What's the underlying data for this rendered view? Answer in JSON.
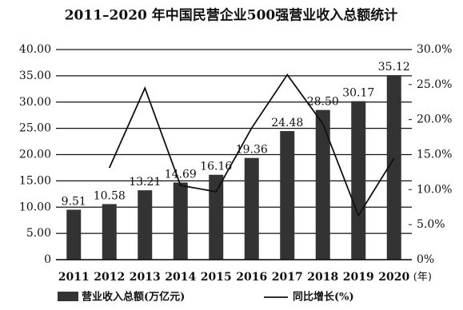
{
  "chart_data": {
    "type": "bar-line",
    "title": "2011–2020 年中国民营企业500强营业收入总额统计",
    "x_label": "(年)",
    "categories": [
      "2011",
      "2012",
      "2013",
      "2014",
      "2015",
      "2016",
      "2017",
      "2018",
      "2019",
      "2020"
    ],
    "series": [
      {
        "name": "营业收入总额(万亿元)",
        "type": "bar",
        "color": "#333333",
        "values": [
          9.51,
          10.58,
          13.21,
          14.69,
          16.16,
          19.36,
          24.48,
          28.5,
          30.17,
          35.12
        ],
        "value_labels": [
          "9.51",
          "10.58",
          "13.21",
          "14.69",
          "16.16",
          "19.36",
          "24.48",
          "28.50",
          "30.17",
          "35.12"
        ]
      },
      {
        "name": "同比增长(%)",
        "type": "line",
        "axis": "y2",
        "color": "#111111",
        "values": [
          null,
          13.1,
          24.5,
          10.6,
          9.7,
          18.8,
          26.4,
          19.4,
          6.3,
          14.5
        ]
      }
    ],
    "ylim": [
      0,
      40
    ],
    "yticks": [
      0,
      {
        "value": 5,
        "label": "5.00"
      },
      {
        "value": 10,
        "label": "10.00"
      },
      {
        "value": 15,
        "label": "15.00"
      },
      {
        "value": 20,
        "label": "20.00"
      },
      {
        "value": 25,
        "label": "25.00"
      },
      {
        "value": 30,
        "label": "30.00"
      },
      {
        "value": 35,
        "label": "35.00"
      },
      {
        "value": 40,
        "label": "40.00"
      }
    ],
    "y2lim": [
      0,
      30
    ],
    "y2ticks": [
      {
        "value": 0,
        "label": "0%"
      },
      {
        "value": 5,
        "label": "5.0%"
      },
      {
        "value": 10,
        "label": "10.0%"
      },
      {
        "value": 15,
        "label": "15.0%"
      },
      {
        "value": 20,
        "label": "20.0%"
      },
      {
        "value": 25,
        "label": "25.0%"
      },
      {
        "value": 30,
        "label": "30.0%"
      }
    ],
    "grid": true
  }
}
